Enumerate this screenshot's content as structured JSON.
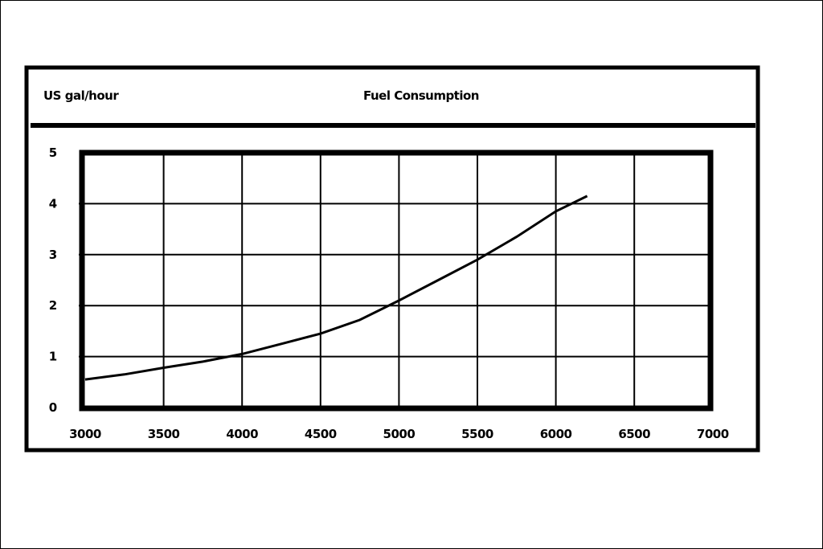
{
  "chart_data": {
    "type": "line",
    "title": "Fuel Consumption",
    "ylabel": "US gal/hour",
    "xlabel": "",
    "x_ticks": [
      "3000",
      "3500",
      "4000",
      "4500",
      "5000",
      "5500",
      "6000",
      "6500",
      "7000"
    ],
    "y_ticks": [
      "0",
      "1",
      "2",
      "3",
      "4",
      "5"
    ],
    "xlim": [
      3000,
      7000
    ],
    "ylim": [
      0,
      5
    ],
    "grid": true,
    "series": [
      {
        "x": [
          3000,
          3250,
          3500,
          3750,
          4000,
          4250,
          4500,
          4750,
          5000,
          5250,
          5500,
          5750,
          6000,
          6200
        ],
        "y": [
          0.55,
          0.65,
          0.78,
          0.9,
          1.05,
          1.25,
          1.45,
          1.72,
          2.1,
          2.5,
          2.9,
          3.35,
          3.85,
          4.15
        ]
      }
    ],
    "colors": {
      "line": "#000000",
      "grid": "#000000",
      "background": "#ffffff"
    }
  }
}
